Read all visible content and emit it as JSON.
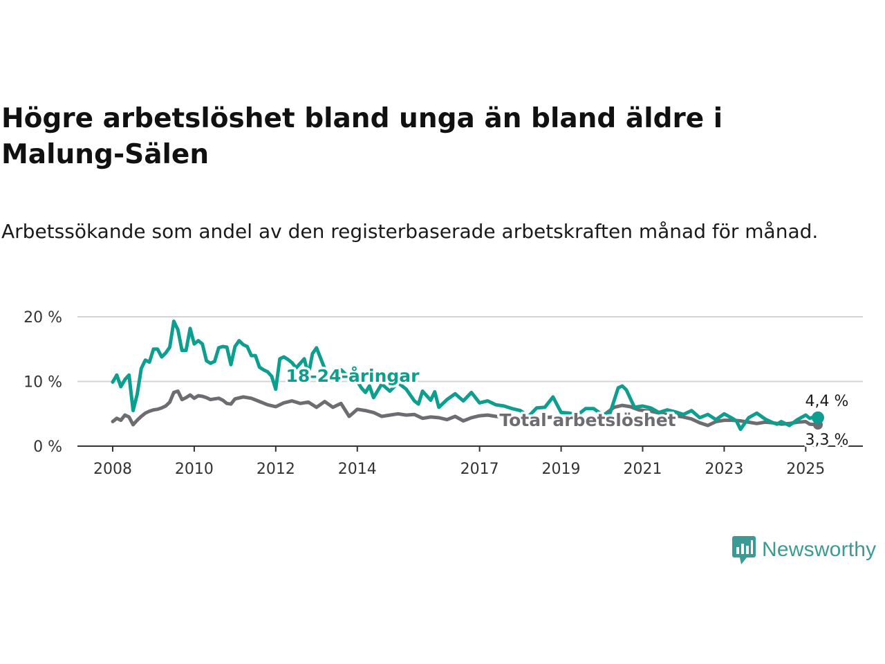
{
  "title": "Högre arbetslöshet bland unga än bland äldre i Malung-Sälen",
  "subtitle": "Arbetssökande som andel av den registerbaserade arbetskraften månad för månad.",
  "logo_text": "Newsworthy",
  "colors": {
    "young": "#0c9e8f",
    "total": "#6d6c70",
    "grid": "#d4d4d4",
    "axis": "#333333",
    "logo": "#3a9b94"
  },
  "chart_data": {
    "type": "line",
    "title": "Högre arbetslöshet bland unga än bland äldre i Malung-Sälen",
    "subtitle": "Arbetssökande som andel av den registerbaserade arbetskraften månad för månad.",
    "ylim": [
      0,
      20
    ],
    "y_ticks": [
      0,
      10,
      20
    ],
    "y_tick_labels": [
      "0 %",
      "10 %",
      "20 %"
    ],
    "xlim": [
      2008.0,
      2025.8
    ],
    "x_ticks": [
      2008,
      2010,
      2012,
      2014,
      2017,
      2019,
      2021,
      2023,
      2025
    ],
    "x_tick_labels": [
      "2008",
      "2010",
      "2012",
      "2014",
      "2017",
      "2019",
      "2021",
      "2023",
      "2025"
    ],
    "grid": true,
    "legend": "inline labels",
    "series": [
      {
        "name": "18-24-åringar",
        "end_label": "4,4 %",
        "x": [
          2008.0,
          2008.1,
          2008.2,
          2008.3,
          2008.4,
          2008.5,
          2008.6,
          2008.7,
          2008.8,
          2008.9,
          2009.0,
          2009.1,
          2009.2,
          2009.3,
          2009.4,
          2009.5,
          2009.6,
          2009.7,
          2009.8,
          2009.9,
          2010.0,
          2010.1,
          2010.2,
          2010.3,
          2010.4,
          2010.5,
          2010.6,
          2010.7,
          2010.8,
          2010.9,
          2011.0,
          2011.1,
          2011.2,
          2011.3,
          2011.4,
          2011.5,
          2011.6,
          2011.7,
          2011.8,
          2011.9,
          2012.0,
          2012.1,
          2012.2,
          2012.3,
          2012.4,
          2012.5,
          2012.6,
          2012.7,
          2012.8,
          2012.9,
          2013.0,
          2013.2,
          2013.4,
          2013.6,
          2013.8,
          2014.0,
          2014.1,
          2014.2,
          2014.3,
          2014.4,
          2014.6,
          2014.8,
          2015.0,
          2015.2,
          2015.4,
          2015.5,
          2015.6,
          2015.8,
          2015.9,
          2016.0,
          2016.2,
          2016.4,
          2016.6,
          2016.8,
          2017.0,
          2017.2,
          2017.4,
          2017.6,
          2017.8,
          2018.0,
          2018.2,
          2018.4,
          2018.6,
          2018.8,
          2019.0,
          2019.2,
          2019.4,
          2019.6,
          2019.8,
          2020.0,
          2020.2,
          2020.4,
          2020.5,
          2020.6,
          2020.8,
          2021.0,
          2021.2,
          2021.4,
          2021.6,
          2021.8,
          2022.0,
          2022.2,
          2022.4,
          2022.6,
          2022.8,
          2023.0,
          2023.2,
          2023.3,
          2023.4,
          2023.6,
          2023.8,
          2024.0,
          2024.1,
          2024.2,
          2024.3,
          2024.4,
          2024.6,
          2024.8,
          2025.0,
          2025.1,
          2025.2,
          2025.3
        ],
        "y": [
          9.9,
          11.0,
          9.2,
          10.3,
          11.0,
          5.5,
          8.0,
          12.0,
          13.3,
          13.0,
          15.0,
          15.0,
          13.8,
          14.4,
          15.3,
          19.3,
          18.0,
          14.8,
          14.8,
          18.2,
          15.8,
          16.3,
          15.8,
          13.2,
          12.8,
          13.1,
          15.2,
          15.4,
          15.3,
          12.6,
          15.4,
          16.3,
          15.7,
          15.4,
          14.0,
          14.0,
          12.2,
          11.8,
          11.5,
          10.8,
          8.8,
          13.5,
          13.8,
          13.4,
          12.9,
          12.1,
          12.8,
          13.5,
          11.0,
          14.3,
          15.2,
          12.0,
          10.6,
          11.8,
          10.6,
          10.0,
          9.0,
          8.3,
          9.3,
          7.5,
          9.6,
          8.5,
          9.8,
          8.8,
          7.0,
          6.5,
          8.5,
          7.1,
          8.4,
          6.0,
          7.2,
          8.1,
          7.0,
          8.3,
          6.7,
          7.0,
          6.4,
          6.2,
          5.8,
          5.5,
          4.6,
          5.9,
          6.0,
          7.6,
          5.2,
          5.1,
          4.8,
          5.8,
          5.8,
          4.9,
          5.1,
          9.0,
          9.3,
          8.7,
          6.0,
          6.2,
          5.9,
          5.2,
          5.6,
          5.3,
          4.9,
          5.5,
          4.4,
          4.9,
          4.1,
          5.0,
          4.3,
          3.9,
          2.6,
          4.4,
          5.1,
          4.2,
          3.9,
          3.6,
          3.4,
          3.8,
          3.2,
          4.1,
          4.8,
          4.3,
          4.5,
          4.4
        ]
      },
      {
        "name": "Total arbetslöshet",
        "end_label": "3,3 %",
        "x": [
          2008.0,
          2008.1,
          2008.2,
          2008.3,
          2008.4,
          2008.5,
          2008.6,
          2008.7,
          2008.8,
          2008.9,
          2009.0,
          2009.1,
          2009.2,
          2009.3,
          2009.4,
          2009.5,
          2009.6,
          2009.7,
          2009.8,
          2009.9,
          2010.0,
          2010.1,
          2010.2,
          2010.3,
          2010.4,
          2010.5,
          2010.6,
          2010.7,
          2010.8,
          2010.9,
          2011.0,
          2011.2,
          2011.4,
          2011.6,
          2011.8,
          2012.0,
          2012.2,
          2012.4,
          2012.6,
          2012.8,
          2013.0,
          2013.2,
          2013.4,
          2013.6,
          2013.8,
          2014.0,
          2014.2,
          2014.4,
          2014.6,
          2014.8,
          2015.0,
          2015.2,
          2015.4,
          2015.6,
          2015.8,
          2016.0,
          2016.2,
          2016.4,
          2016.6,
          2016.8,
          2017.0,
          2017.2,
          2017.4,
          2017.6,
          2017.8,
          2018.0,
          2018.4,
          2018.8,
          2019.2,
          2019.6,
          2020.0,
          2020.3,
          2020.5,
          2020.7,
          2020.9,
          2021.2,
          2021.5,
          2021.8,
          2022.0,
          2022.2,
          2022.4,
          2022.6,
          2022.8,
          2023.0,
          2023.2,
          2023.4,
          2023.6,
          2023.8,
          2024.0,
          2024.2,
          2024.4,
          2024.6,
          2024.8,
          2025.0,
          2025.1,
          2025.3
        ],
        "y": [
          3.8,
          4.3,
          4.0,
          4.8,
          4.5,
          3.3,
          4.0,
          4.6,
          5.1,
          5.4,
          5.6,
          5.7,
          5.9,
          6.2,
          6.8,
          8.3,
          8.5,
          7.2,
          7.5,
          7.9,
          7.4,
          7.8,
          7.7,
          7.5,
          7.2,
          7.3,
          7.4,
          7.1,
          6.6,
          6.5,
          7.3,
          7.6,
          7.4,
          6.9,
          6.4,
          6.1,
          6.7,
          7.0,
          6.6,
          6.8,
          6.0,
          6.9,
          6.0,
          6.6,
          4.6,
          5.7,
          5.5,
          5.2,
          4.6,
          4.8,
          5.0,
          4.8,
          4.9,
          4.3,
          4.5,
          4.4,
          4.1,
          4.6,
          3.9,
          4.4,
          4.7,
          4.8,
          4.6,
          4.5,
          4.3,
          4.1,
          4.3,
          4.5,
          4.2,
          4.3,
          4.6,
          6.0,
          6.3,
          6.1,
          5.6,
          5.4,
          5.0,
          4.7,
          4.5,
          4.2,
          3.6,
          3.2,
          3.8,
          4.0,
          4.0,
          3.9,
          3.7,
          3.5,
          3.7,
          3.6,
          3.4,
          3.5,
          3.7,
          3.8,
          3.4,
          3.3
        ]
      }
    ]
  }
}
